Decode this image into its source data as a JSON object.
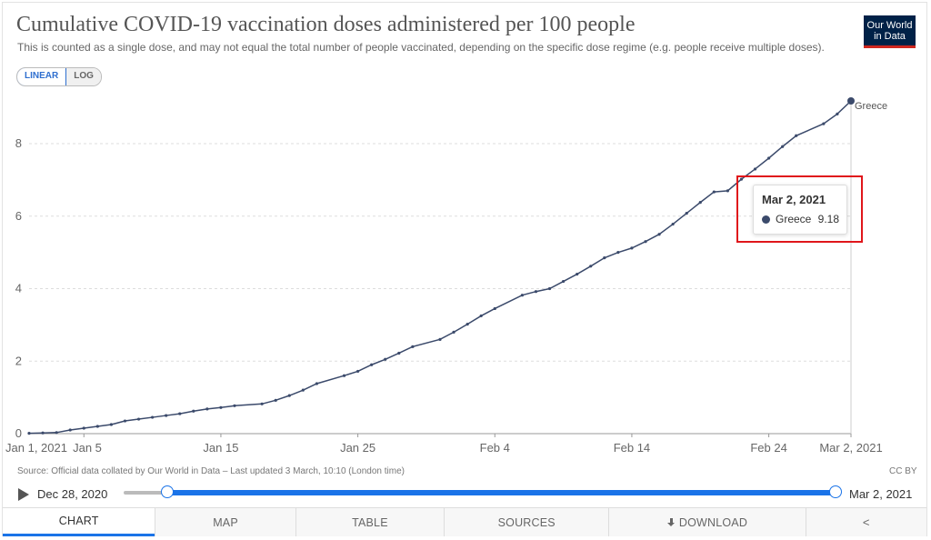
{
  "header": {
    "title": "Cumulative COVID-19 vaccination doses administered per 100 people",
    "subtitle": "This is counted as a single dose, and may not equal the total number of people vaccinated, depending on the specific dose regime (e.g. people receive multiple doses).",
    "logo_line1": "Our World",
    "logo_line2": "in Data"
  },
  "scale_toggle": {
    "linear": "LINEAR",
    "log": "LOG",
    "selected": "LINEAR"
  },
  "tooltip": {
    "date": "Mar 2, 2021",
    "series": "Greece",
    "value": "9.18"
  },
  "footer": {
    "source": "Source: Official data collated by Our World in Data – Last updated 3 March, 10:10 (London time)",
    "license": "CC BY"
  },
  "timeline": {
    "start": "Dec 28, 2020",
    "end": "Mar 2, 2021"
  },
  "tabs": [
    {
      "label": "CHART",
      "active": true
    },
    {
      "label": "MAP"
    },
    {
      "label": "TABLE"
    },
    {
      "label": "SOURCES"
    },
    {
      "label": "DOWNLOAD",
      "icon": "download-icon"
    },
    {
      "label": "",
      "icon": "share-icon"
    }
  ],
  "colors": {
    "series": "#3b4a6b",
    "accent": "#1a73e8",
    "highlight": "#e0161b",
    "logo_bg": "#002147",
    "logo_bar": "#ce261e"
  },
  "chart_data": {
    "type": "line",
    "xlabel": "",
    "ylabel": "",
    "ylim": [
      0,
      9.18
    ],
    "grid": true,
    "yticks": [
      0,
      2,
      4,
      6,
      8
    ],
    "xtick_labels": [
      "Jan 1, 2021",
      "Jan 5",
      "Jan 15",
      "Jan 25",
      "Feb 4",
      "Feb 14",
      "Feb 24",
      "Mar 2, 2021"
    ],
    "xtick_days": [
      0,
      4,
      14,
      24,
      34,
      44,
      54,
      60
    ],
    "series": [
      {
        "name": "Greece",
        "x": [
          0,
          1,
          2,
          3,
          4,
          5,
          6,
          7,
          8,
          9,
          10,
          11,
          12,
          13,
          14,
          15,
          17,
          18,
          19,
          20,
          21,
          23,
          24,
          25,
          26,
          27,
          28,
          30,
          31,
          32,
          33,
          34,
          36,
          37,
          38,
          39,
          40,
          41,
          42,
          43,
          44,
          45,
          46,
          47,
          48,
          49,
          50,
          51,
          52,
          53,
          54,
          55,
          56,
          58,
          59,
          60
        ],
        "y": [
          0.01,
          0.02,
          0.03,
          0.1,
          0.15,
          0.2,
          0.25,
          0.35,
          0.4,
          0.45,
          0.5,
          0.55,
          0.62,
          0.68,
          0.72,
          0.77,
          0.82,
          0.92,
          1.05,
          1.2,
          1.38,
          1.6,
          1.72,
          1.9,
          2.05,
          2.22,
          2.4,
          2.6,
          2.8,
          3.02,
          3.25,
          3.45,
          3.82,
          3.92,
          4.0,
          4.2,
          4.4,
          4.62,
          4.85,
          5.0,
          5.12,
          5.3,
          5.5,
          5.78,
          6.08,
          6.38,
          6.67,
          6.7,
          7.02,
          7.3,
          7.6,
          7.92,
          8.22,
          8.55,
          8.82,
          9.18
        ]
      }
    ]
  }
}
